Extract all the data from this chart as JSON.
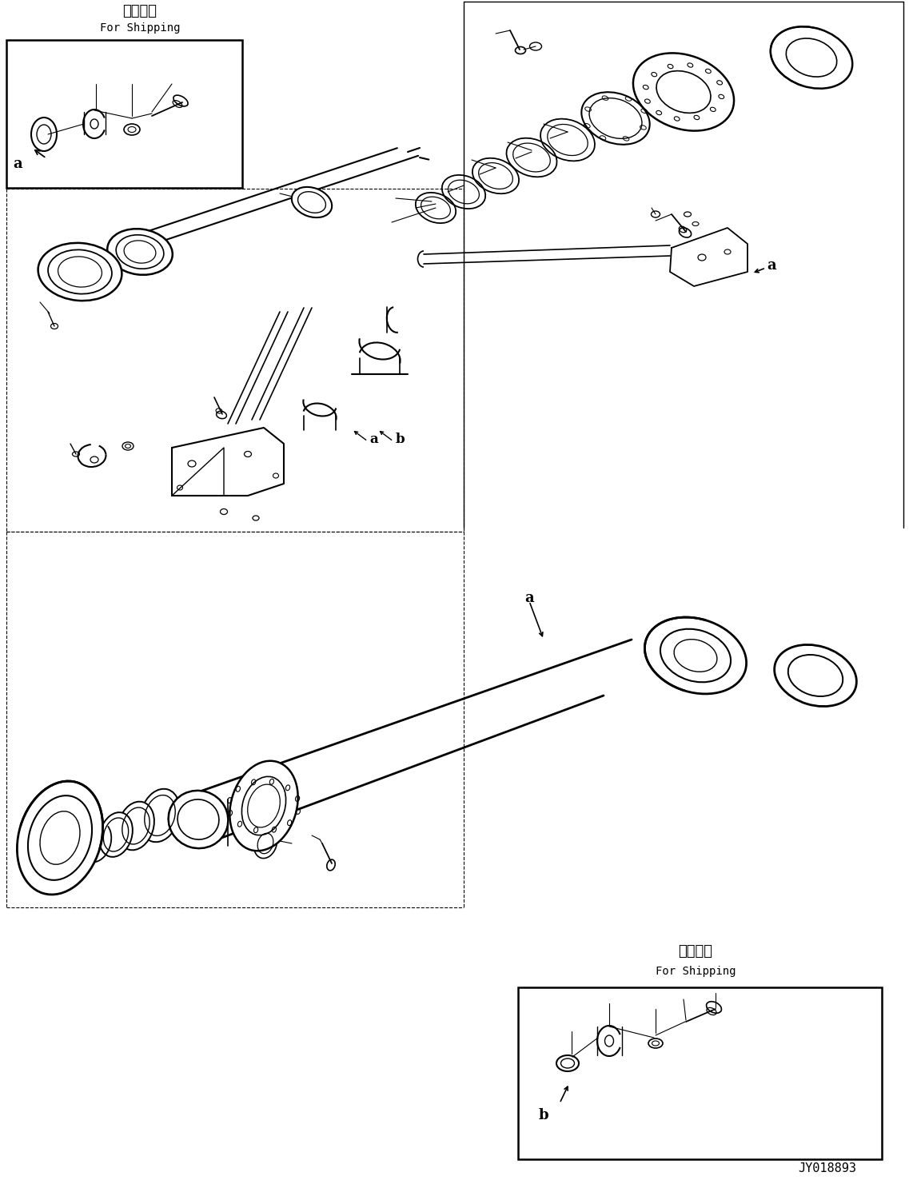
{
  "bg_color": "#ffffff",
  "line_color": "#000000",
  "fig_width": 11.37,
  "fig_height": 14.91,
  "title_jp": "運轘部品",
  "title_en": "For Shipping",
  "title2_jp": "運轘部品",
  "title2_en": "For Shipping",
  "part_number": "JY018893"
}
